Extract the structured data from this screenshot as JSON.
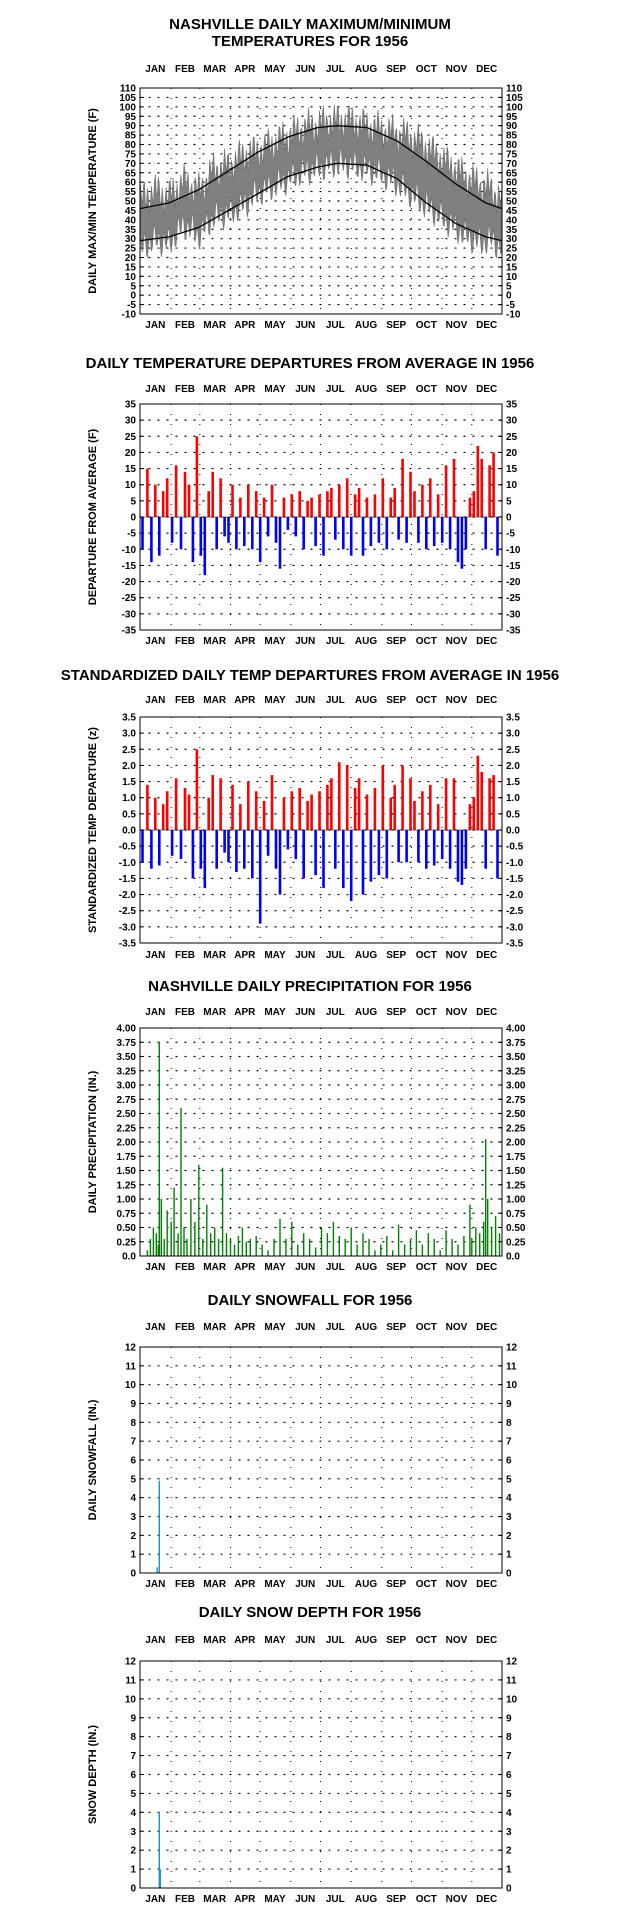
{
  "months": [
    "JAN",
    "FEB",
    "MAR",
    "APR",
    "MAY",
    "JUN",
    "JUL",
    "AUG",
    "SEP",
    "OCT",
    "NOV",
    "DEC"
  ],
  "colors": {
    "temp_band": "#808080",
    "warm": "#ff0000",
    "cool": "#0000ff",
    "precip": "#008000",
    "snow": "#1e90c8",
    "axis": "#000000"
  },
  "chart_data": [
    {
      "id": "temps",
      "type": "area",
      "title": "NASHVILLE DAILY MAXIMUM/MINIMUM TEMPERATURES FOR 1956",
      "title_lines": [
        "NASHVILLE DAILY MAXIMUM/MINIMUM",
        "TEMPERATURES FOR 1956"
      ],
      "ylabel": "DAILY MAX/MIN TEMPERATURE (F)",
      "ylim": [
        -10,
        110
      ],
      "yticks": [
        "110",
        "105",
        "100",
        "95",
        "90",
        "85",
        "80",
        "75",
        "70",
        "65",
        "60",
        "55",
        "50",
        "45",
        "40",
        "35",
        "30",
        "25",
        "20",
        "15",
        "10",
        "5",
        "0",
        "-5",
        "-10"
      ],
      "series": [
        {
          "kind": "band",
          "x": [
            1,
            15,
            30,
            45,
            60,
            75,
            90,
            105,
            120,
            135,
            150,
            165,
            180,
            195,
            210,
            225,
            240,
            255,
            270,
            285,
            300,
            315,
            330,
            345,
            355,
            366
          ],
          "high": [
            50,
            55,
            52,
            60,
            55,
            66,
            68,
            74,
            76,
            80,
            84,
            88,
            90,
            92,
            92,
            90,
            88,
            86,
            84,
            80,
            74,
            68,
            62,
            58,
            56,
            50
          ],
          "low": [
            25,
            30,
            28,
            38,
            32,
            42,
            44,
            48,
            55,
            58,
            62,
            66,
            68,
            70,
            70,
            68,
            66,
            62,
            56,
            50,
            44,
            38,
            32,
            28,
            30,
            26
          ]
        },
        {
          "kind": "line",
          "x": [
            1,
            30,
            60,
            90,
            120,
            150,
            180,
            200,
            230,
            260,
            290,
            320,
            350,
            366
          ],
          "values": [
            46,
            49,
            56,
            66,
            76,
            84,
            89,
            90,
            89,
            82,
            71,
            59,
            49,
            46
          ]
        },
        {
          "kind": "line",
          "x": [
            1,
            30,
            60,
            90,
            120,
            150,
            180,
            200,
            230,
            260,
            290,
            320,
            350,
            366
          ],
          "values": [
            29,
            31,
            36,
            45,
            54,
            63,
            68,
            70,
            69,
            62,
            49,
            38,
            31,
            29
          ]
        }
      ]
    },
    {
      "id": "departures",
      "type": "bar",
      "title": "DAILY TEMPERATURE DEPARTURES FROM AVERAGE IN 1956",
      "ylabel": "DEPARTURE FROM AVERAGE (F)",
      "ylim": [
        -35,
        35
      ],
      "yticks": [
        "35",
        "30",
        "25",
        "20",
        "15",
        "10",
        "5",
        "0",
        "-5",
        "-10",
        "-15",
        "-20",
        "-25",
        "-30",
        "-35"
      ],
      "x": [
        3,
        8,
        12,
        16,
        20,
        24,
        28,
        33,
        37,
        42,
        46,
        50,
        54,
        58,
        62,
        66,
        70,
        74,
        78,
        82,
        86,
        90,
        94,
        98,
        102,
        106,
        110,
        114,
        118,
        122,
        126,
        130,
        134,
        138,
        142,
        146,
        150,
        154,
        158,
        162,
        166,
        170,
        174,
        178,
        182,
        186,
        190,
        194,
        198,
        202,
        206,
        210,
        214,
        218,
        222,
        226,
        230,
        234,
        238,
        242,
        246,
        250,
        254,
        258,
        262,
        266,
        270,
        274,
        278,
        282,
        286,
        290,
        294,
        298,
        302,
        306,
        310,
        314,
        318,
        322,
        326,
        330,
        334,
        338,
        342,
        346,
        350,
        354,
        358,
        362
      ],
      "values": [
        -10,
        15,
        -14,
        10,
        -12,
        8,
        12,
        -8,
        16,
        -10,
        14,
        10,
        -14,
        25,
        -12,
        -18,
        8,
        14,
        -10,
        12,
        -6,
        -8,
        10,
        -10,
        6,
        -9,
        10,
        -10,
        8,
        -14,
        6,
        -6,
        10,
        -8,
        -16,
        6,
        -4,
        7,
        -6,
        8,
        -10,
        5,
        6,
        -9,
        7,
        -12,
        8,
        9,
        -7,
        10,
        -10,
        12,
        -12,
        7,
        9,
        -12,
        6,
        -9,
        7,
        -8,
        12,
        -10,
        6,
        9,
        -7,
        18,
        -8,
        14,
        8,
        -8,
        10,
        -10,
        12,
        -9,
        7,
        -8,
        16,
        -10,
        18,
        -14,
        -16,
        -10,
        6,
        8,
        22,
        18,
        -10,
        16,
        20,
        -12
      ]
    },
    {
      "id": "standardized",
      "type": "bar",
      "title": "STANDARDIZED DAILY TEMP DEPARTURES FROM AVERAGE IN 1956",
      "ylabel": "STANDARDIZED TEMP DEPARTURE (z)",
      "ylim": [
        -3.5,
        3.5
      ],
      "yticks": [
        "3.5",
        "3.0",
        "2.5",
        "2.0",
        "1.5",
        "1.0",
        "0.5",
        "0.0",
        "-0.5",
        "-1.0",
        "-1.5",
        "-2.0",
        "-2.5",
        "-3.0",
        "-3.5"
      ],
      "x": [
        3,
        8,
        12,
        16,
        20,
        24,
        28,
        33,
        37,
        42,
        46,
        50,
        54,
        58,
        62,
        66,
        70,
        74,
        78,
        82,
        86,
        90,
        94,
        98,
        102,
        106,
        110,
        114,
        118,
        122,
        126,
        130,
        134,
        138,
        142,
        146,
        150,
        154,
        158,
        162,
        166,
        170,
        174,
        178,
        182,
        186,
        190,
        194,
        198,
        202,
        206,
        210,
        214,
        218,
        222,
        226,
        230,
        234,
        238,
        242,
        246,
        250,
        254,
        258,
        262,
        266,
        270,
        274,
        278,
        282,
        286,
        290,
        294,
        298,
        302,
        306,
        310,
        314,
        318,
        322,
        326,
        330,
        334,
        338,
        342,
        346,
        350,
        354,
        358,
        362
      ],
      "values": [
        -1.0,
        1.4,
        -1.2,
        1.0,
        -1.1,
        0.8,
        1.2,
        -0.8,
        1.6,
        -0.9,
        1.3,
        1.1,
        -1.5,
        2.5,
        -1.2,
        -1.8,
        1.0,
        1.7,
        -1.2,
        1.6,
        -0.7,
        -1.0,
        1.4,
        -1.3,
        0.8,
        -1.2,
        1.5,
        -1.5,
        1.2,
        -2.9,
        0.9,
        -0.8,
        1.7,
        -1.2,
        -2.0,
        1.0,
        -0.6,
        1.2,
        -0.9,
        1.3,
        -1.5,
        0.9,
        1.1,
        -1.4,
        1.2,
        -1.8,
        1.4,
        1.6,
        -1.2,
        2.1,
        -1.8,
        2.0,
        -2.2,
        1.3,
        1.6,
        -2.0,
        1.1,
        -1.6,
        1.3,
        -1.4,
        2.0,
        -1.5,
        1.0,
        1.4,
        -1.0,
        2.0,
        -1.0,
        1.6,
        0.9,
        -1.0,
        1.2,
        -1.2,
        1.4,
        -1.1,
        0.8,
        -0.9,
        1.6,
        -1.2,
        1.6,
        -1.6,
        -1.7,
        -1.2,
        0.8,
        1.0,
        2.3,
        1.8,
        -1.2,
        1.6,
        1.7,
        -1.5
      ]
    },
    {
      "id": "precip",
      "type": "bar",
      "title": "NASHVILLE DAILY PRECIPITATION FOR 1956",
      "ylabel": "DAILY PRECIPITATION (IN.)",
      "ylim": [
        0,
        4
      ],
      "yticks": [
        "4.00",
        "3.75",
        "3.50",
        "3.25",
        "3.00",
        "2.75",
        "2.50",
        "2.25",
        "2.00",
        "1.75",
        "1.50",
        "1.25",
        "1.00",
        "0.75",
        "0.50",
        "0.25",
        "0.0"
      ],
      "x": [
        8,
        11,
        14,
        17,
        19,
        20,
        22,
        25,
        28,
        32,
        35,
        39,
        42,
        45,
        48,
        52,
        56,
        60,
        64,
        68,
        72,
        76,
        80,
        84,
        88,
        92,
        96,
        100,
        104,
        108,
        112,
        118,
        124,
        130,
        136,
        142,
        148,
        154,
        160,
        166,
        172,
        178,
        184,
        190,
        196,
        202,
        208,
        214,
        220,
        226,
        232,
        238,
        244,
        250,
        256,
        262,
        268,
        274,
        280,
        286,
        292,
        298,
        304,
        310,
        316,
        322,
        328,
        334,
        336,
        340,
        344,
        348,
        350,
        352,
        356,
        360,
        364
      ],
      "values": [
        0.1,
        0.3,
        0.5,
        0.4,
        0.2,
        3.75,
        1.0,
        0.3,
        0.8,
        0.6,
        1.2,
        0.4,
        2.6,
        0.5,
        0.3,
        1.0,
        0.6,
        1.6,
        0.3,
        0.9,
        0.4,
        0.5,
        0.3,
        1.55,
        0.4,
        0.3,
        0.2,
        0.35,
        0.5,
        0.25,
        0.3,
        0.35,
        0.2,
        0.1,
        0.3,
        0.65,
        0.3,
        0.6,
        0.2,
        0.4,
        0.3,
        0.15,
        0.5,
        0.4,
        0.6,
        0.35,
        0.3,
        0.5,
        0.2,
        0.4,
        0.3,
        0.1,
        0.2,
        0.35,
        0.1,
        0.55,
        0.2,
        0.3,
        0.45,
        0.2,
        0.4,
        0.3,
        0.1,
        0.45,
        0.3,
        0.2,
        0.35,
        0.9,
        0.3,
        0.5,
        0.4,
        0.6,
        2.05,
        1.0,
        0.5,
        0.7,
        0.4
      ]
    },
    {
      "id": "snowfall",
      "type": "bar",
      "title": "DAILY SNOWFALL FOR 1956",
      "ylabel": "DAILY SNOWFALL (IN.)",
      "ylim": [
        0,
        12
      ],
      "yticks": [
        "12",
        "11",
        "10",
        "9",
        "8",
        "7",
        "6",
        "5",
        "4",
        "3",
        "2",
        "1",
        "0"
      ],
      "x": [
        18,
        20
      ],
      "values": [
        0.3,
        4.9
      ]
    },
    {
      "id": "snowdepth",
      "type": "bar",
      "title": "DAILY SNOW DEPTH FOR 1956",
      "ylabel": "SNOW DEPTH (IN.)",
      "ylim": [
        0,
        12
      ],
      "yticks": [
        "12",
        "11",
        "10",
        "9",
        "8",
        "7",
        "6",
        "5",
        "4",
        "3",
        "2",
        "1",
        "0"
      ],
      "x": [
        20,
        21
      ],
      "values": [
        4,
        1
      ]
    }
  ]
}
